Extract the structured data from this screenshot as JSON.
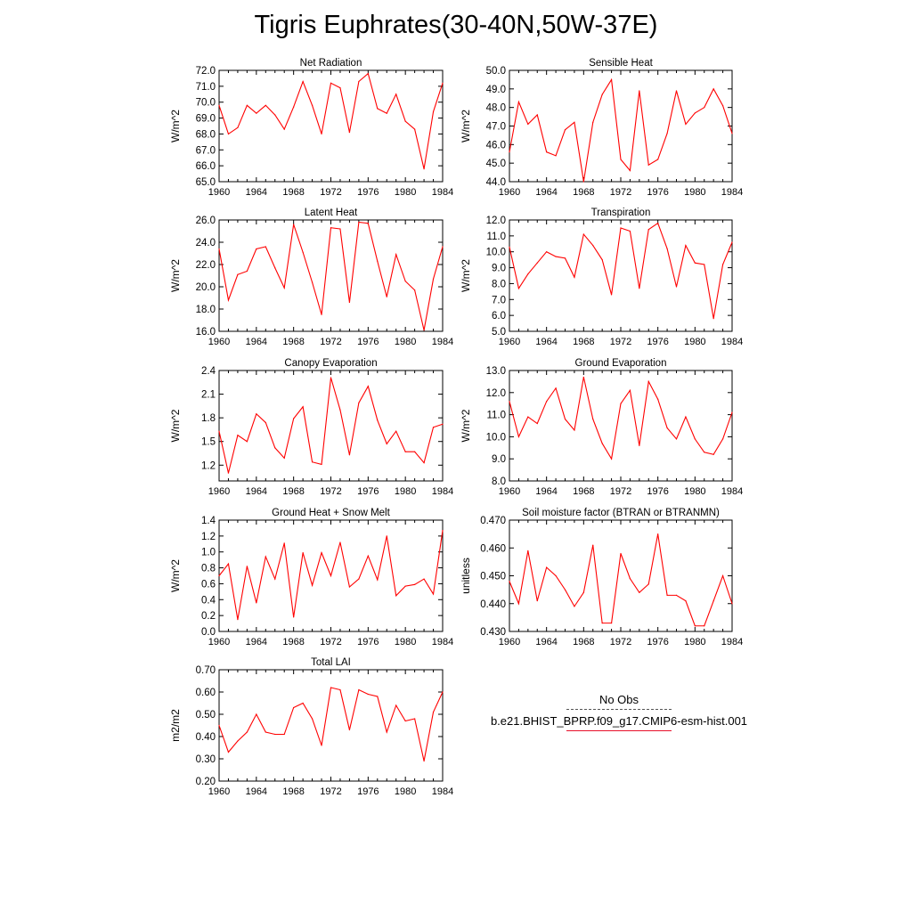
{
  "figure": {
    "title": "Tigris Euphrates(30-40N,50W-37E)"
  },
  "colors": {
    "series": "#ff0000",
    "obs": "#555555"
  },
  "legend": {
    "obs_label": "No Obs",
    "model_label": "b.e21.BHIST_BPRP.f09_g17.CMIP6-esm-hist.001"
  },
  "chart_data": [
    {
      "type": "line",
      "title": "Net Radiation",
      "ylabel": "W/m^2",
      "ylim": [
        65.0,
        72.0
      ],
      "yticks": [
        "65.0",
        "66.0",
        "67.0",
        "68.0",
        "69.0",
        "70.0",
        "71.0",
        "72.0"
      ],
      "xlim": [
        1960,
        1984
      ],
      "xticks": [
        "1960",
        "1964",
        "1968",
        "1972",
        "1976",
        "1980",
        "1984"
      ],
      "series": [
        {
          "x": [
            1960,
            1961,
            1962,
            1963,
            1964,
            1965,
            1966,
            1967,
            1968,
            1969,
            1970,
            1971,
            1972,
            1973,
            1974,
            1975,
            1976,
            1977,
            1978,
            1979,
            1980,
            1981,
            1982,
            1983,
            1984
          ],
          "values": [
            69.8,
            68.0,
            68.4,
            69.8,
            69.3,
            69.8,
            69.2,
            68.3,
            69.7,
            71.3,
            69.8,
            68.0,
            71.2,
            70.9,
            68.1,
            71.3,
            71.8,
            69.6,
            69.3,
            70.5,
            68.8,
            68.3,
            65.8,
            69.4,
            71.2
          ]
        }
      ]
    },
    {
      "type": "line",
      "title": "Sensible Heat",
      "ylabel": "W/m^2",
      "ylim": [
        44.0,
        50.0
      ],
      "yticks": [
        "44.0",
        "45.0",
        "46.0",
        "47.0",
        "48.0",
        "49.0",
        "50.0"
      ],
      "xlim": [
        1960,
        1984
      ],
      "xticks": [
        "1960",
        "1964",
        "1968",
        "1972",
        "1976",
        "1980",
        "1984"
      ],
      "series": [
        {
          "x": [
            1960,
            1961,
            1962,
            1963,
            1964,
            1965,
            1966,
            1967,
            1968,
            1969,
            1970,
            1971,
            1972,
            1973,
            1974,
            1975,
            1976,
            1977,
            1978,
            1979,
            1980,
            1981,
            1982,
            1983,
            1984
          ],
          "values": [
            45.6,
            48.3,
            47.1,
            47.6,
            45.6,
            45.4,
            46.8,
            47.2,
            44.0,
            47.2,
            48.7,
            49.5,
            45.2,
            44.6,
            48.9,
            44.9,
            45.2,
            46.6,
            48.9,
            47.1,
            47.7,
            48.0,
            49.0,
            48.1,
            46.6
          ]
        }
      ]
    },
    {
      "type": "line",
      "title": "Latent Heat",
      "ylabel": "W/m^2",
      "ylim": [
        16.0,
        26.0
      ],
      "yticks": [
        "16.0",
        "18.0",
        "20.0",
        "22.0",
        "24.0",
        "26.0"
      ],
      "xlim": [
        1960,
        1984
      ],
      "xticks": [
        "1960",
        "1964",
        "1968",
        "1972",
        "1976",
        "1980",
        "1984"
      ],
      "series": [
        {
          "x": [
            1960,
            1961,
            1962,
            1963,
            1964,
            1965,
            1966,
            1967,
            1968,
            1969,
            1970,
            1971,
            1972,
            1973,
            1974,
            1975,
            1976,
            1977,
            1978,
            1979,
            1980,
            1981,
            1982,
            1983,
            1984
          ],
          "values": [
            23.4,
            18.8,
            21.1,
            21.4,
            23.4,
            23.6,
            21.7,
            19.9,
            25.6,
            23.1,
            20.4,
            17.5,
            25.3,
            25.2,
            18.6,
            25.8,
            25.7,
            22.3,
            19.1,
            22.9,
            20.5,
            19.7,
            16.1,
            20.7,
            23.6
          ]
        }
      ]
    },
    {
      "type": "line",
      "title": "Transpiration",
      "ylabel": "W/m^2",
      "ylim": [
        5.0,
        12.0
      ],
      "yticks": [
        "5.0",
        "6.0",
        "7.0",
        "8.0",
        "9.0",
        "10.0",
        "11.0",
        "12.0"
      ],
      "xlim": [
        1960,
        1984
      ],
      "xticks": [
        "1960",
        "1964",
        "1968",
        "1972",
        "1976",
        "1980",
        "1984"
      ],
      "series": [
        {
          "x": [
            1960,
            1961,
            1962,
            1963,
            1964,
            1965,
            1966,
            1967,
            1968,
            1969,
            1970,
            1971,
            1972,
            1973,
            1974,
            1975,
            1976,
            1977,
            1978,
            1979,
            1980,
            1981,
            1982,
            1983,
            1984
          ],
          "values": [
            10.3,
            7.7,
            8.6,
            9.3,
            10.0,
            9.7,
            9.6,
            8.4,
            11.1,
            10.4,
            9.5,
            7.3,
            11.5,
            11.3,
            7.7,
            11.4,
            11.8,
            10.2,
            7.8,
            10.4,
            9.3,
            9.2,
            5.8,
            9.2,
            10.6
          ]
        }
      ]
    },
    {
      "type": "line",
      "title": "Canopy Evaporation",
      "ylabel": "W/m^2",
      "ylim": [
        1.0,
        2.4
      ],
      "yticks": [
        "1.2",
        "1.5",
        "1.8",
        "2.1",
        "2.4"
      ],
      "xlim": [
        1960,
        1984
      ],
      "xticks": [
        "1960",
        "1964",
        "1968",
        "1972",
        "1976",
        "1980",
        "1984"
      ],
      "series": [
        {
          "x": [
            1960,
            1961,
            1962,
            1963,
            1964,
            1965,
            1966,
            1967,
            1968,
            1969,
            1970,
            1971,
            1972,
            1973,
            1974,
            1975,
            1976,
            1977,
            1978,
            1979,
            1980,
            1981,
            1982,
            1983,
            1984
          ],
          "values": [
            1.63,
            1.1,
            1.58,
            1.5,
            1.85,
            1.74,
            1.42,
            1.29,
            1.79,
            1.94,
            1.24,
            1.21,
            2.31,
            1.9,
            1.33,
            1.99,
            2.2,
            1.77,
            1.47,
            1.63,
            1.37,
            1.37,
            1.23,
            1.68,
            1.72
          ]
        }
      ]
    },
    {
      "type": "line",
      "title": "Ground Evaporation",
      "ylabel": "W/m^2",
      "ylim": [
        8.0,
        13.0
      ],
      "yticks": [
        "8.0",
        "9.0",
        "10.0",
        "11.0",
        "12.0",
        "13.0"
      ],
      "xlim": [
        1960,
        1984
      ],
      "xticks": [
        "1960",
        "1964",
        "1968",
        "1972",
        "1976",
        "1980",
        "1984"
      ],
      "series": [
        {
          "x": [
            1960,
            1961,
            1962,
            1963,
            1964,
            1965,
            1966,
            1967,
            1968,
            1969,
            1970,
            1971,
            1972,
            1973,
            1974,
            1975,
            1976,
            1977,
            1978,
            1979,
            1980,
            1981,
            1982,
            1983,
            1984
          ],
          "values": [
            11.6,
            10.0,
            10.9,
            10.6,
            11.6,
            12.2,
            10.8,
            10.3,
            12.7,
            10.8,
            9.7,
            9.0,
            11.5,
            12.1,
            9.6,
            12.5,
            11.7,
            10.4,
            9.9,
            10.9,
            9.9,
            9.3,
            9.2,
            9.9,
            11.1
          ]
        }
      ]
    },
    {
      "type": "line",
      "title": "Ground Heat + Snow Melt",
      "ylabel": "W/m^2",
      "ylim": [
        0.0,
        1.4
      ],
      "yticks": [
        "0.0",
        "0.2",
        "0.4",
        "0.6",
        "0.8",
        "1.0",
        "1.2",
        "1.4"
      ],
      "xlim": [
        1960,
        1984
      ],
      "xticks": [
        "1960",
        "1964",
        "1968",
        "1972",
        "1976",
        "1980",
        "1984"
      ],
      "series": [
        {
          "x": [
            1960,
            1961,
            1962,
            1963,
            1964,
            1965,
            1966,
            1967,
            1968,
            1969,
            1970,
            1971,
            1972,
            1973,
            1974,
            1975,
            1976,
            1977,
            1978,
            1979,
            1980,
            1981,
            1982,
            1983,
            1984
          ],
          "values": [
            0.7,
            0.85,
            0.15,
            0.82,
            0.36,
            0.94,
            0.66,
            1.11,
            0.18,
            0.99,
            0.58,
            0.99,
            0.7,
            1.12,
            0.56,
            0.66,
            0.95,
            0.65,
            1.2,
            0.45,
            0.57,
            0.59,
            0.66,
            0.47,
            1.27
          ]
        }
      ]
    },
    {
      "type": "line",
      "title": "Soil moisture factor (BTRAN or BTRANMN)",
      "ylabel": "unitless",
      "ylim": [
        0.43,
        0.47
      ],
      "yticks": [
        "0.430",
        "0.440",
        "0.450",
        "0.460",
        "0.470"
      ],
      "xlim": [
        1960,
        1984
      ],
      "xticks": [
        "1960",
        "1964",
        "1968",
        "1972",
        "1976",
        "1980",
        "1984"
      ],
      "series": [
        {
          "x": [
            1960,
            1961,
            1962,
            1963,
            1964,
            1965,
            1966,
            1967,
            1968,
            1969,
            1970,
            1971,
            1972,
            1973,
            1974,
            1975,
            1976,
            1977,
            1978,
            1979,
            1980,
            1981,
            1982,
            1983,
            1984
          ],
          "values": [
            0.448,
            0.44,
            0.459,
            0.441,
            0.453,
            0.45,
            0.445,
            0.439,
            0.444,
            0.461,
            0.433,
            0.433,
            0.458,
            0.449,
            0.444,
            0.447,
            0.465,
            0.443,
            0.443,
            0.441,
            0.432,
            0.432,
            0.441,
            0.45,
            0.44
          ]
        }
      ]
    },
    {
      "type": "line",
      "title": "Total LAI",
      "ylabel": "m2/m2",
      "ylim": [
        0.2,
        0.7
      ],
      "yticks": [
        "0.20",
        "0.30",
        "0.40",
        "0.50",
        "0.60",
        "0.70"
      ],
      "xlim": [
        1960,
        1984
      ],
      "xticks": [
        "1960",
        "1964",
        "1968",
        "1972",
        "1976",
        "1980",
        "1984"
      ],
      "series": [
        {
          "x": [
            1960,
            1961,
            1962,
            1963,
            1964,
            1965,
            1966,
            1967,
            1968,
            1969,
            1970,
            1971,
            1972,
            1973,
            1974,
            1975,
            1976,
            1977,
            1978,
            1979,
            1980,
            1981,
            1982,
            1983,
            1984
          ],
          "values": [
            0.45,
            0.33,
            0.38,
            0.42,
            0.5,
            0.42,
            0.41,
            0.41,
            0.53,
            0.55,
            0.48,
            0.36,
            0.62,
            0.61,
            0.43,
            0.61,
            0.59,
            0.58,
            0.42,
            0.54,
            0.47,
            0.48,
            0.29,
            0.51,
            0.6
          ]
        }
      ]
    }
  ]
}
